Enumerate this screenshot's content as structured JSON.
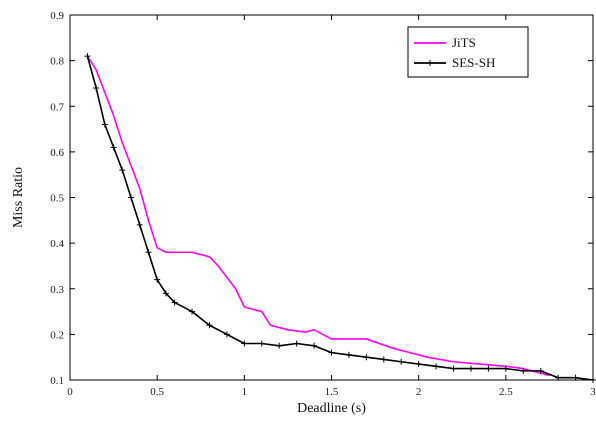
{
  "chart_data": {
    "type": "line",
    "title": "",
    "xlabel": "Deadline (s)",
    "ylabel": "Miss Ratio",
    "xlim": [
      0,
      3
    ],
    "ylim": [
      0.1,
      0.9
    ],
    "x_ticks": [
      "0",
      "0.5",
      "1",
      "1.5",
      "2",
      "2.5",
      "3"
    ],
    "y_ticks": [
      "0.1",
      "0.2",
      "0.3",
      "0.4",
      "0.5",
      "0.6",
      "0.7",
      "0.8",
      "0.9"
    ],
    "legend_position": "top-right",
    "series": [
      {
        "name": "JiTS",
        "color": "#ff00ff",
        "marker": "none",
        "x": [
          0.1,
          0.15,
          0.2,
          0.25,
          0.3,
          0.35,
          0.4,
          0.45,
          0.5,
          0.55,
          0.6,
          0.7,
          0.8,
          0.85,
          0.95,
          1.0,
          1.1,
          1.15,
          1.25,
          1.35,
          1.4,
          1.5,
          1.7,
          1.85,
          1.95,
          2.05,
          2.2,
          2.35,
          2.5,
          2.6,
          2.75
        ],
        "y": [
          0.81,
          0.78,
          0.73,
          0.68,
          0.62,
          0.57,
          0.52,
          0.45,
          0.39,
          0.38,
          0.38,
          0.38,
          0.37,
          0.35,
          0.3,
          0.26,
          0.25,
          0.22,
          0.21,
          0.205,
          0.21,
          0.19,
          0.19,
          0.17,
          0.16,
          0.15,
          0.14,
          0.135,
          0.13,
          0.125,
          0.11
        ]
      },
      {
        "name": "SES-SH",
        "color": "#000000",
        "marker": "+",
        "x": [
          0.1,
          0.15,
          0.2,
          0.25,
          0.3,
          0.35,
          0.4,
          0.45,
          0.5,
          0.55,
          0.6,
          0.7,
          0.8,
          0.9,
          1.0,
          1.1,
          1.2,
          1.3,
          1.4,
          1.5,
          1.6,
          1.7,
          1.8,
          1.9,
          2.0,
          2.1,
          2.2,
          2.3,
          2.4,
          2.5,
          2.6,
          2.7,
          2.8,
          2.9,
          3.0
        ],
        "y": [
          0.81,
          0.74,
          0.66,
          0.61,
          0.56,
          0.5,
          0.44,
          0.38,
          0.32,
          0.29,
          0.27,
          0.25,
          0.22,
          0.2,
          0.18,
          0.18,
          0.175,
          0.18,
          0.175,
          0.16,
          0.155,
          0.15,
          0.145,
          0.14,
          0.135,
          0.13,
          0.125,
          0.125,
          0.125,
          0.125,
          0.12,
          0.12,
          0.105,
          0.105,
          0.1
        ]
      }
    ]
  }
}
